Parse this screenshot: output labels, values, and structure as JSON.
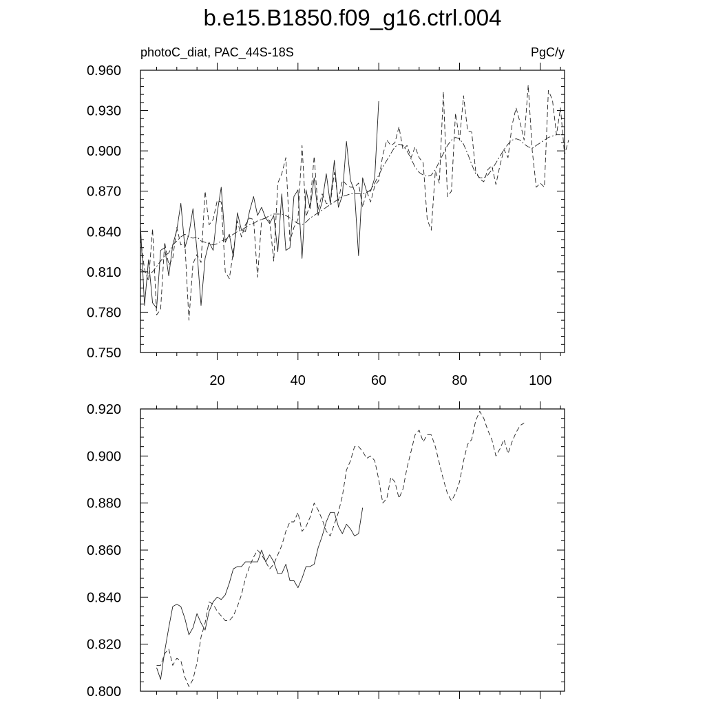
{
  "title": "b.e15.B1850.f09_g16.ctrl.004",
  "panel_left_label": "photoC_diat, PAC_44S-18S",
  "panel_right_label": "PgC/y",
  "chart_data": [
    {
      "type": "line",
      "xlim": [
        1,
        106
      ],
      "ylim": [
        0.75,
        0.96
      ],
      "yticks": [
        0.75,
        0.78,
        0.81,
        0.84,
        0.87,
        0.9,
        0.93,
        0.96
      ],
      "ytick_labels": [
        "0.750",
        "0.780",
        "0.810",
        "0.840",
        "0.870",
        "0.900",
        "0.930",
        "0.960"
      ],
      "xticks": [
        20,
        40,
        60,
        80,
        100
      ],
      "xtick_labels": [
        "20",
        "40",
        "60",
        "80",
        "100"
      ],
      "x_labels_side": "bottom",
      "series": [
        {
          "style": "solid",
          "x_start": 1,
          "values": [
            0.845,
            0.785,
            0.819,
            0.787,
            0.783,
            0.826,
            0.828,
            0.807,
            0.83,
            0.841,
            0.861,
            0.828,
            0.838,
            0.857,
            0.826,
            0.785,
            0.82,
            0.832,
            0.826,
            0.854,
            0.873,
            0.832,
            0.838,
            0.821,
            0.854,
            0.841,
            0.84,
            0.855,
            0.866,
            0.852,
            0.858,
            0.85,
            0.846,
            0.852,
            0.825,
            0.868,
            0.826,
            0.828,
            0.866,
            0.871,
            0.82,
            0.871,
            0.857,
            0.88,
            0.852,
            0.862,
            0.883,
            0.861,
            0.893,
            0.858,
            0.867,
            0.907,
            0.878,
            0.87,
            0.822,
            0.88,
            0.87,
            0.87,
            0.88,
            0.937
          ]
        },
        {
          "style": "dashed",
          "x_start": 1,
          "values": [
            0.835,
            0.812,
            0.803,
            0.842,
            0.778,
            0.782,
            0.832,
            0.815,
            0.82,
            0.843,
            0.83,
            0.832,
            0.774,
            0.816,
            0.823,
            0.817,
            0.87,
            0.845,
            0.849,
            0.863,
            0.862,
            0.81,
            0.805,
            0.825,
            0.848,
            0.836,
            0.845,
            0.85,
            0.849,
            0.806,
            0.849,
            0.85,
            0.848,
            0.818,
            0.876,
            0.883,
            0.895,
            0.833,
            0.843,
            0.849,
            0.904,
            0.851,
            0.86,
            0.896,
            0.856,
            0.868,
            0.861,
            0.86,
            0.884,
            0.863,
            0.878,
            0.875,
            0.873,
            0.873,
            0.876,
            0.858,
            0.87,
            0.862,
            0.874,
            0.878,
            0.897,
            0.908,
            0.904,
            0.906,
            0.918,
            0.901,
            0.904,
            0.895,
            0.903,
            0.895,
            0.891,
            0.849,
            0.841,
            0.885,
            0.876,
            0.944,
            0.866,
            0.87,
            0.928,
            0.908,
            0.941,
            0.915,
            0.914,
            0.885,
            0.879,
            0.877,
            0.886,
            0.889,
            0.875,
            0.889,
            0.901,
            0.895,
            0.919,
            0.932,
            0.921,
            0.908,
            0.949,
            0.9,
            0.873,
            0.876,
            0.873,
            0.945,
            0.938,
            0.912,
            0.932,
            0.897,
            0.908
          ]
        },
        {
          "style": "dash-dot",
          "x_start": 1,
          "values": [
            0.812,
            0.81,
            0.809,
            0.81,
            0.814,
            0.818,
            0.822,
            0.824,
            0.83,
            0.833,
            0.836,
            0.838,
            0.836,
            0.835,
            0.836,
            0.833,
            0.832,
            0.831,
            0.83,
            0.831,
            0.833,
            0.834,
            0.836,
            0.838,
            0.84,
            0.841,
            0.843,
            0.845,
            0.846,
            0.848,
            0.849,
            0.85,
            0.852,
            0.853,
            0.853,
            0.853,
            0.852,
            0.85,
            0.848,
            0.846,
            0.845,
            0.847,
            0.85,
            0.852,
            0.854,
            0.856,
            0.858,
            0.86,
            0.862,
            0.864,
            0.866,
            0.867,
            0.868,
            0.868,
            0.868,
            0.868,
            0.869,
            0.871,
            0.876,
            0.882,
            0.888,
            0.893,
            0.898,
            0.903,
            0.905,
            0.904,
            0.9,
            0.894,
            0.888,
            0.884,
            0.882,
            0.881,
            0.882,
            0.886,
            0.892,
            0.898,
            0.904,
            0.908,
            0.91,
            0.909,
            0.905,
            0.898,
            0.89,
            0.883,
            0.88,
            0.88,
            0.882,
            0.886,
            0.891,
            0.896,
            0.901,
            0.905,
            0.908,
            0.909,
            0.908,
            0.905,
            0.903,
            0.902,
            0.904,
            0.906,
            0.908,
            0.91,
            0.911,
            0.912,
            0.912
          ]
        }
      ]
    },
    {
      "type": "line",
      "xlim": [
        1,
        106
      ],
      "ylim": [
        0.8,
        0.92
      ],
      "yticks": [
        0.8,
        0.82,
        0.84,
        0.86,
        0.88,
        0.9,
        0.92
      ],
      "ytick_labels": [
        "0.800",
        "0.820",
        "0.840",
        "0.860",
        "0.880",
        "0.900",
        "0.920"
      ],
      "xticks": [
        20,
        40,
        60,
        80,
        100
      ],
      "series": [
        {
          "style": "solid",
          "x_start": 5,
          "values": [
            0.81,
            0.805,
            0.817,
            0.827,
            0.836,
            0.837,
            0.836,
            0.831,
            0.824,
            0.827,
            0.833,
            0.829,
            0.826,
            0.834,
            0.838,
            0.84,
            0.839,
            0.841,
            0.846,
            0.852,
            0.853,
            0.853,
            0.855,
            0.855,
            0.855,
            0.855,
            0.86,
            0.855,
            0.858,
            0.855,
            0.85,
            0.85,
            0.854,
            0.847,
            0.847,
            0.844,
            0.848,
            0.853,
            0.853,
            0.854,
            0.861,
            0.866,
            0.872,
            0.876,
            0.876,
            0.87,
            0.867,
            0.871,
            0.869,
            0.866,
            0.867,
            0.878
          ]
        },
        {
          "style": "dashed",
          "x_start": 5,
          "values": [
            0.811,
            0.811,
            0.816,
            0.818,
            0.811,
            0.814,
            0.813,
            0.806,
            0.802,
            0.805,
            0.812,
            0.823,
            0.829,
            0.838,
            0.837,
            0.834,
            0.832,
            0.83,
            0.83,
            0.832,
            0.836,
            0.841,
            0.848,
            0.853,
            0.857,
            0.86,
            0.858,
            0.855,
            0.852,
            0.854,
            0.858,
            0.862,
            0.868,
            0.872,
            0.872,
            0.876,
            0.868,
            0.87,
            0.874,
            0.88,
            0.877,
            0.873,
            0.868,
            0.866,
            0.871,
            0.876,
            0.883,
            0.894,
            0.898,
            0.904,
            0.904,
            0.902,
            0.899,
            0.9,
            0.898,
            0.89,
            0.88,
            0.882,
            0.891,
            0.889,
            0.882,
            0.886,
            0.895,
            0.902,
            0.909,
            0.911,
            0.906,
            0.909,
            0.909,
            0.904,
            0.897,
            0.89,
            0.884,
            0.881,
            0.884,
            0.889,
            0.898,
            0.905,
            0.907,
            0.915,
            0.919,
            0.916,
            0.911,
            0.907,
            0.9,
            0.903,
            0.907,
            0.901,
            0.906,
            0.91,
            0.913,
            0.914
          ]
        }
      ]
    }
  ]
}
